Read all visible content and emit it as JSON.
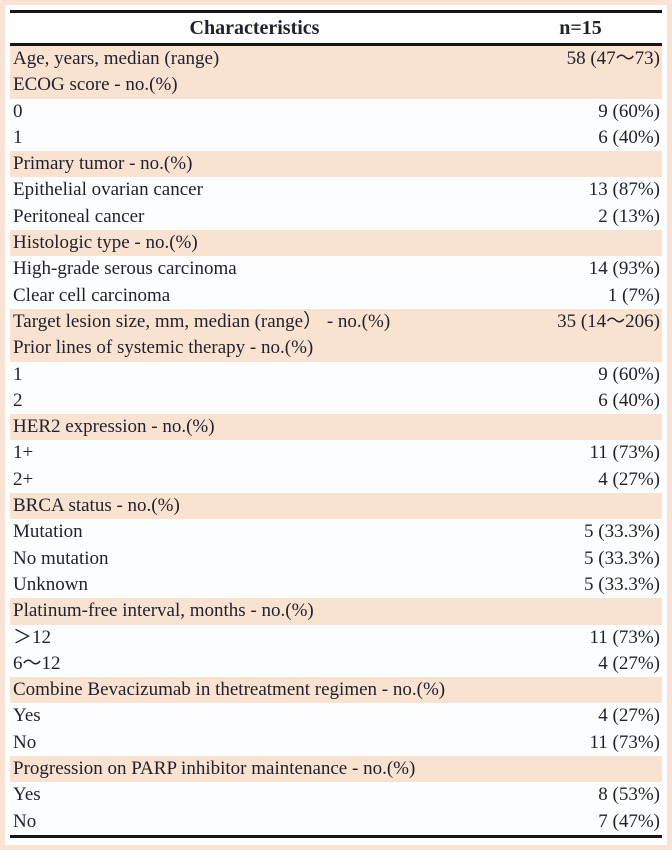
{
  "chart_data": {
    "type": "table",
    "columns": [
      "Characteristics",
      "n=15"
    ],
    "rows": [
      {
        "label": "Age, years, median (range)",
        "value": "58 (47～73)",
        "shade": true
      },
      {
        "label": "ECOG score - no.(%)",
        "value": "",
        "shade": true
      },
      {
        "label": "0",
        "value": "9 (60%)",
        "shade": false
      },
      {
        "label": "1",
        "value": "6 (40%)",
        "shade": false
      },
      {
        "label": "Primary tumor  - no.(%)",
        "value": "",
        "shade": true
      },
      {
        "label": "Epithelial ovarian cancer",
        "value": "13 (87%)",
        "shade": false
      },
      {
        "label": "Peritoneal cancer",
        "value": "2 (13%)",
        "shade": false
      },
      {
        "label": "Histologic type - no.(%)",
        "value": "",
        "shade": true
      },
      {
        "label": "High-grade serous carcinoma",
        "value": "14 (93%)",
        "shade": false
      },
      {
        "label": "Clear cell carcinoma",
        "value": "1 (7%)",
        "shade": false
      },
      {
        "label": "Target lesion size, mm, median (range） - no.(%)",
        "value": "35 (14～206)",
        "shade": true
      },
      {
        "label": "Prior lines of systemic therapy - no.(%)",
        "value": "",
        "shade": true
      },
      {
        "label": "1",
        "value": "9 (60%)",
        "shade": false
      },
      {
        "label": "2",
        "value": "6 (40%)",
        "shade": false
      },
      {
        "label": "HER2 expression - no.(%)",
        "value": "",
        "shade": true
      },
      {
        "label": "1+",
        "value": "11 (73%)",
        "shade": false
      },
      {
        "label": "2+",
        "value": "4 (27%)",
        "shade": false
      },
      {
        "label": "BRCA status - no.(%)",
        "value": "",
        "shade": true
      },
      {
        "label": "Mutation",
        "value": "5 (33.3%)",
        "shade": false
      },
      {
        "label": "No mutation",
        "value": "5 (33.3%)",
        "shade": false
      },
      {
        "label": "Unknown",
        "value": "5 (33.3%)",
        "shade": false
      },
      {
        "label": "Platinum-free interval, months - no.(%)",
        "value": "",
        "shade": true
      },
      {
        "label": "＞12",
        "value": "11 (73%)",
        "shade": false
      },
      {
        "label": "6～12",
        "value": "4 (27%)",
        "shade": false
      },
      {
        "label": "Combine Bevacizumab in thetreatment regimen - no.(%)",
        "value": "",
        "shade": true
      },
      {
        "label": "Yes",
        "value": "4 (27%)",
        "shade": false
      },
      {
        "label": "No",
        "value": "11 (73%)",
        "shade": false
      },
      {
        "label": "Progression on PARP inhibitor maintenance - no.(%)",
        "value": "",
        "shade": true
      },
      {
        "label": "Yes",
        "value": "8 (53%)",
        "shade": false
      },
      {
        "label": "No",
        "value": "7 (47%)",
        "shade": false
      }
    ]
  },
  "colors": {
    "shade": "#fae2d0",
    "row_white": "#fcfdff",
    "rule": "#161616",
    "text": "#20222f",
    "frame": "#f9e3d4"
  }
}
